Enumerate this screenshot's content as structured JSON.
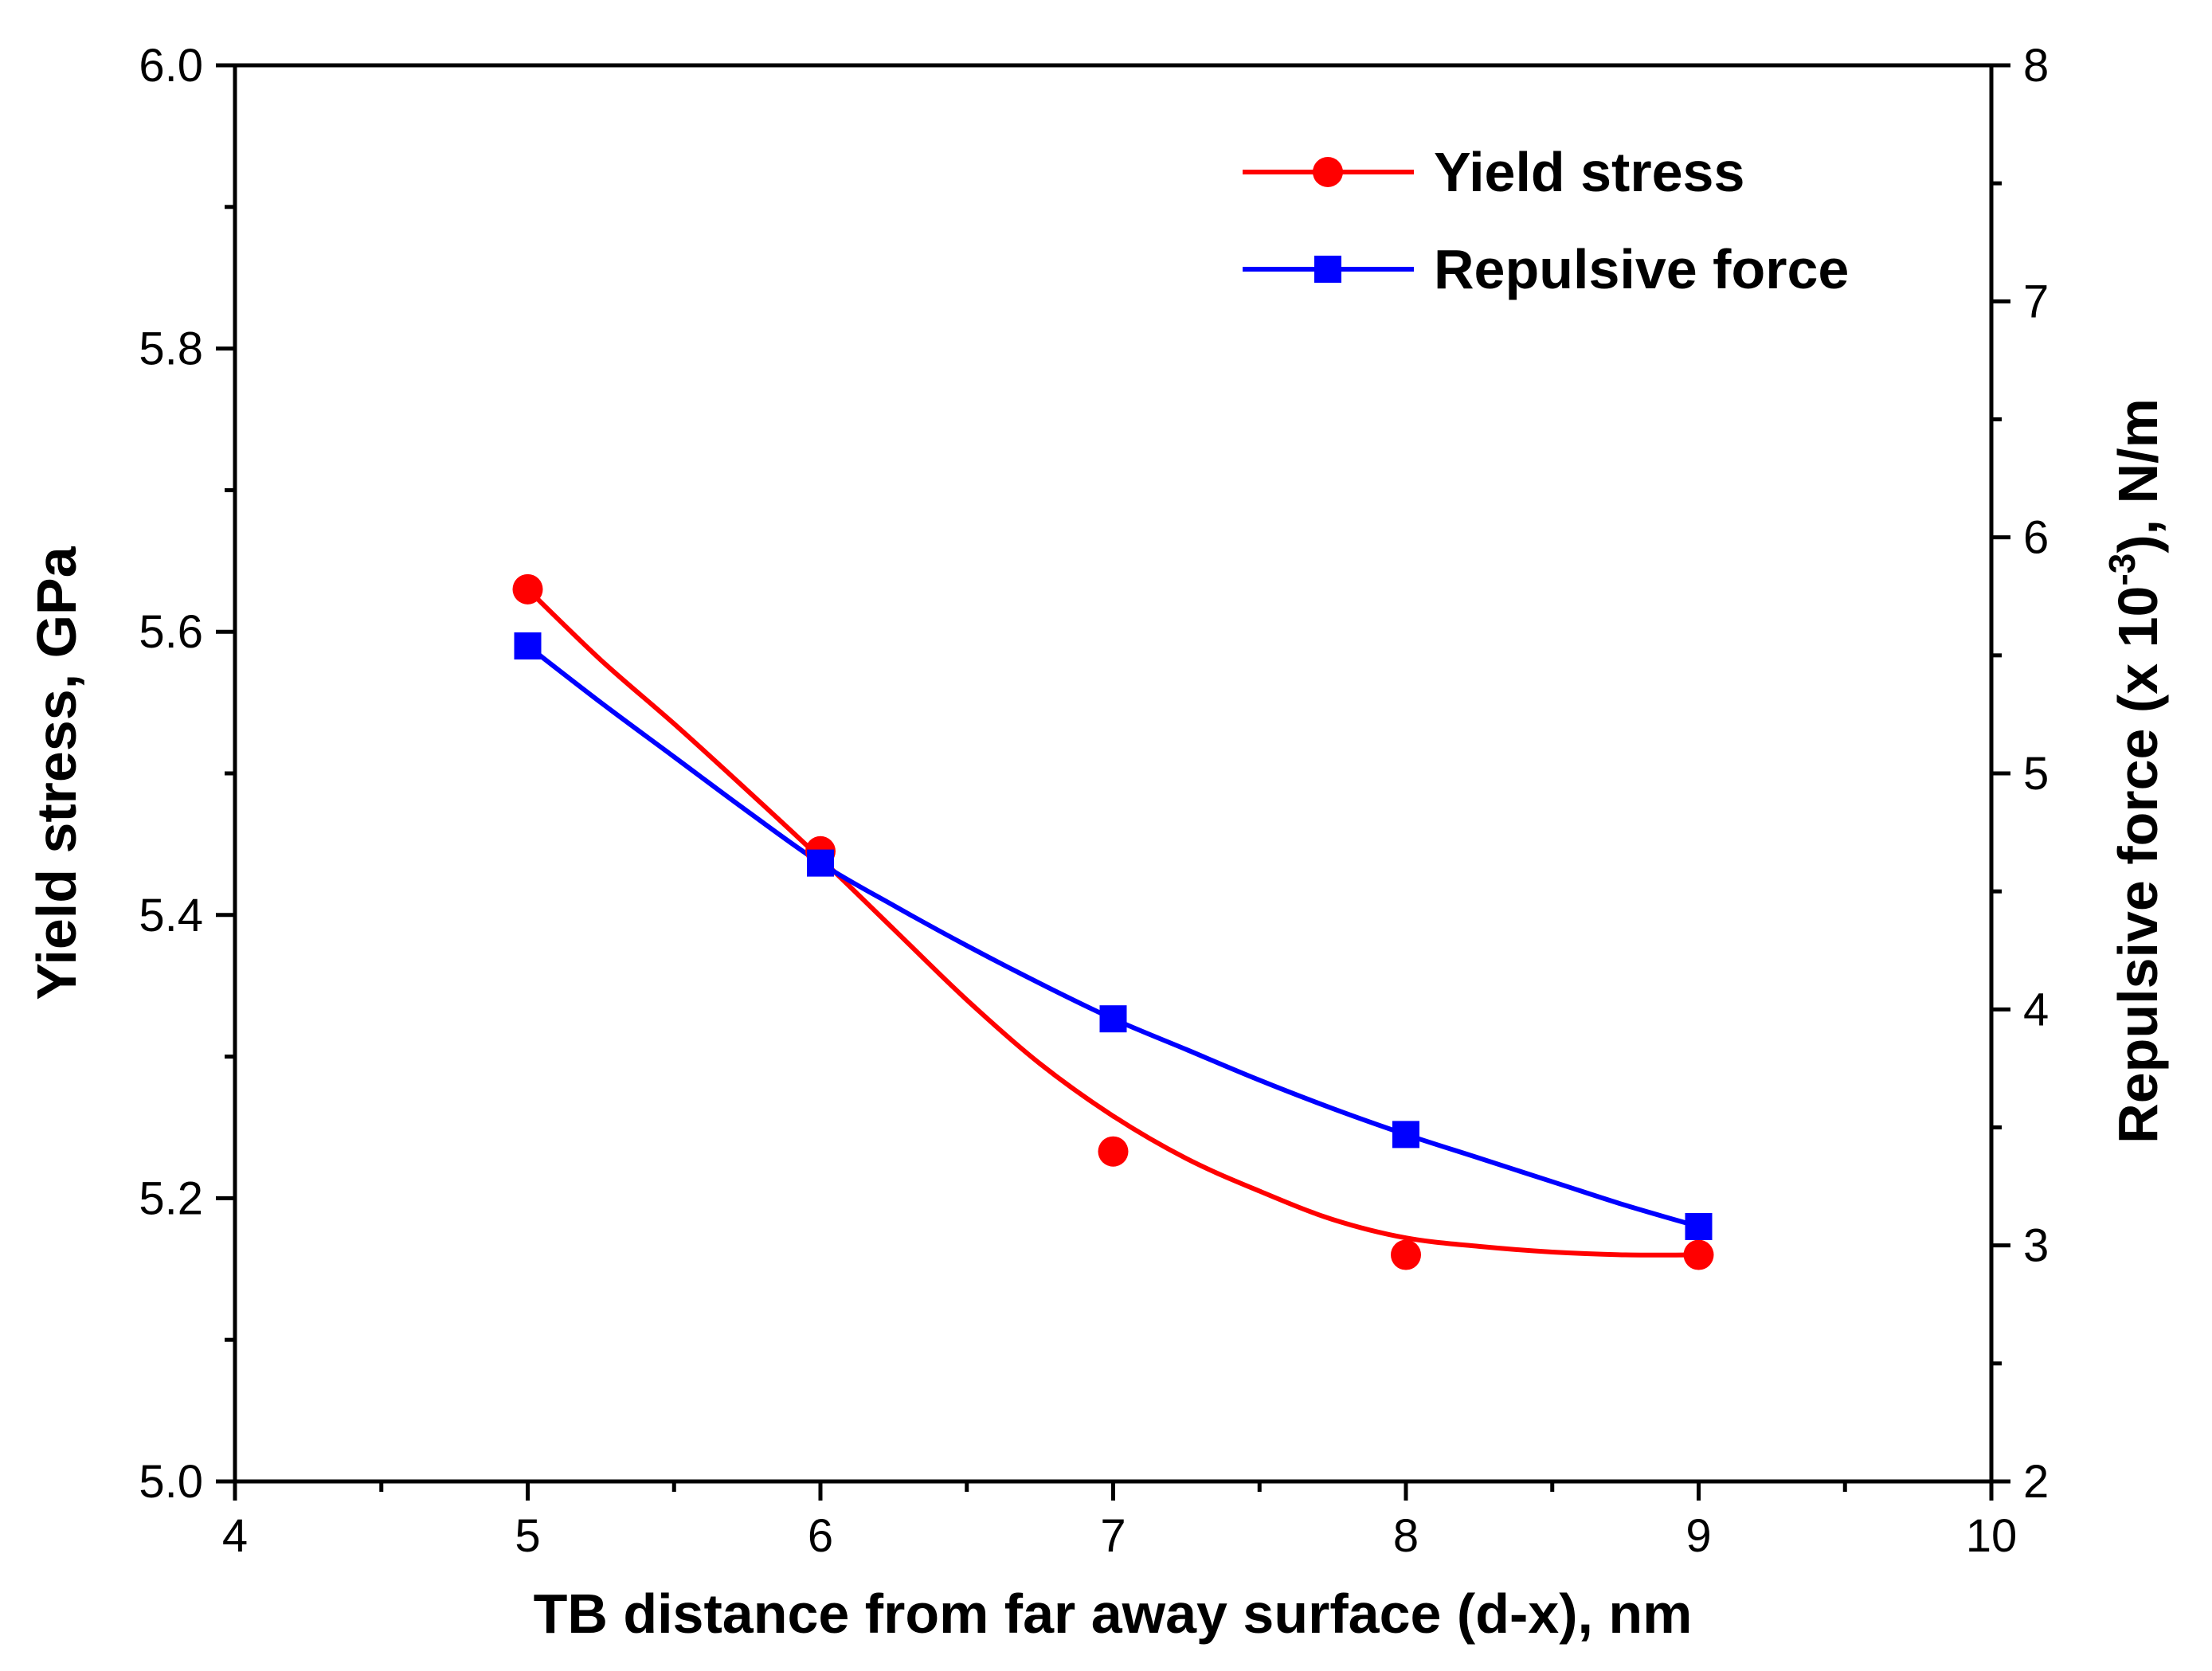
{
  "chart_data": {
    "type": "line",
    "x_axis": {
      "label": "TB distance from far away surface (d-x), nm",
      "range": [
        4,
        10
      ],
      "major_ticks": [
        4,
        5,
        6,
        7,
        8,
        9,
        10
      ],
      "tick_labels": [
        "4",
        "5",
        "6",
        "7",
        "8",
        "9",
        "10"
      ],
      "minor_step": 0.5
    },
    "y_left_axis": {
      "label": "Yield stress, GPa",
      "range": [
        5.0,
        6.0
      ],
      "major_ticks": [
        5.0,
        5.2,
        5.4,
        5.6,
        5.8,
        6.0
      ],
      "tick_labels": [
        "5.0",
        "5.2",
        "5.4",
        "5.6",
        "5.8",
        "6.0"
      ],
      "minor_step": 0.1
    },
    "y_right_axis": {
      "label_main": "Repulsive force (x 10",
      "label_superscript": "-3",
      "label_tail": "), N/m",
      "range": [
        2,
        8
      ],
      "major_ticks": [
        2,
        3,
        4,
        5,
        6,
        7,
        8
      ],
      "tick_labels": [
        "2",
        "3",
        "4",
        "5",
        "6",
        "7",
        "8"
      ],
      "minor_step": 0.5
    },
    "series": [
      {
        "name": "Yield stress",
        "axis": "left",
        "marker": "circle",
        "color": "#ff0000",
        "x": [
          5,
          6,
          7,
          8,
          9
        ],
        "values": [
          5.63,
          5.445,
          5.233,
          5.16,
          5.16
        ],
        "fit_curve": {
          "x": [
            5,
            5.25,
            5.5,
            5.75,
            6,
            6.25,
            6.5,
            6.75,
            7,
            7.25,
            7.5,
            7.75,
            8,
            8.25,
            8.5,
            8.75,
            9
          ],
          "values": [
            5.63,
            5.58,
            5.535,
            5.488,
            5.44,
            5.39,
            5.34,
            5.295,
            5.258,
            5.228,
            5.205,
            5.185,
            5.172,
            5.166,
            5.162,
            5.16,
            5.16
          ]
        }
      },
      {
        "name": "Repulsive force",
        "axis": "right",
        "marker": "square",
        "color": "#0000ff",
        "x": [
          5,
          6,
          7,
          8,
          9
        ],
        "values": [
          5.54,
          4.62,
          3.96,
          3.47,
          3.08
        ],
        "fit_curve": {
          "x": [
            5,
            5.25,
            5.5,
            5.75,
            6,
            6.25,
            6.5,
            6.75,
            7,
            7.25,
            7.5,
            7.75,
            8,
            8.25,
            8.5,
            8.75,
            9
          ],
          "values": [
            5.54,
            5.3,
            5.07,
            4.84,
            4.62,
            4.44,
            4.27,
            4.11,
            3.96,
            3.83,
            3.7,
            3.58,
            3.47,
            3.37,
            3.27,
            3.17,
            3.08
          ]
        }
      }
    ],
    "legend": {
      "position": "top-right",
      "entries": [
        "Yield stress",
        "Repulsive force"
      ]
    }
  }
}
